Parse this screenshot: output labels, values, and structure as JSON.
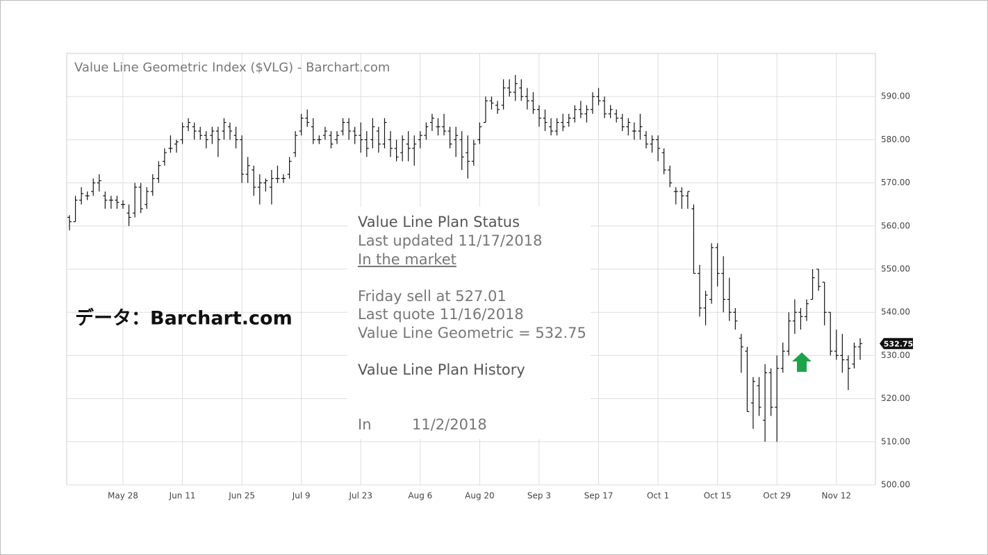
{
  "chart_data": {
    "type": "ohlc",
    "title": "Value Line Geometric Index ($VLG) - Barchart.com",
    "source_note": "データ：Barchart.com",
    "color": "#111111",
    "grid": true,
    "ylim": [
      500,
      600
    ],
    "yticks": [
      {
        "value": 500,
        "label": "500.00"
      },
      {
        "value": 510,
        "label": "510.00"
      },
      {
        "value": 520,
        "label": "520.00"
      },
      {
        "value": 530,
        "label": "530.00"
      },
      {
        "value": 540,
        "label": "540.00"
      },
      {
        "value": 550,
        "label": "550.00"
      },
      {
        "value": 560,
        "label": "560.00"
      },
      {
        "value": 570,
        "label": "570.00"
      },
      {
        "value": 580,
        "label": "580.00"
      },
      {
        "value": 590,
        "label": "590.00"
      }
    ],
    "categories": [
      null,
      null,
      null,
      null,
      null,
      null,
      null,
      null,
      null,
      "May 28",
      null,
      null,
      null,
      null,
      null,
      null,
      null,
      null,
      null,
      "Jun 11",
      null,
      null,
      null,
      null,
      null,
      null,
      null,
      null,
      null,
      "Jun 25",
      null,
      null,
      null,
      null,
      null,
      null,
      null,
      null,
      null,
      "Jul 9",
      null,
      null,
      null,
      null,
      null,
      null,
      null,
      null,
      null,
      "Jul 23",
      null,
      null,
      null,
      null,
      null,
      null,
      null,
      null,
      null,
      "Aug 6",
      null,
      null,
      null,
      null,
      null,
      null,
      null,
      null,
      null,
      "Aug 20",
      null,
      null,
      null,
      null,
      null,
      null,
      null,
      null,
      null,
      "Sep 3",
      null,
      null,
      null,
      null,
      null,
      null,
      null,
      null,
      null,
      "Sep 17",
      null,
      null,
      null,
      null,
      null,
      null,
      null,
      null,
      null,
      "Oct 1",
      null,
      null,
      null,
      null,
      null,
      null,
      null,
      null,
      null,
      "Oct 15",
      null,
      null,
      null,
      null,
      null,
      null,
      null,
      null,
      null,
      "Oct 29",
      null,
      null,
      null,
      null,
      null,
      null,
      null,
      null,
      null,
      "Nov 12",
      null,
      null,
      null,
      null
    ],
    "ohlc": [
      [
        562,
        562.5,
        559,
        561
      ],
      [
        561,
        567,
        561,
        566
      ],
      [
        566,
        569,
        565,
        567.5
      ],
      [
        567,
        568,
        566,
        567
      ],
      [
        568,
        571,
        567,
        570
      ],
      [
        570,
        572,
        568,
        570.5
      ],
      [
        567,
        568,
        564,
        566
      ],
      [
        566,
        567,
        564,
        566
      ],
      [
        566,
        567,
        564,
        565.5
      ],
      [
        565,
        566,
        564,
        565
      ],
      [
        563,
        565,
        560,
        562
      ],
      [
        563,
        570,
        562,
        569
      ],
      [
        569,
        570,
        563,
        564
      ],
      [
        565,
        569,
        564,
        568
      ],
      [
        568,
        572,
        567,
        571
      ],
      [
        571,
        575,
        570,
        574
      ],
      [
        575,
        578,
        574,
        577
      ],
      [
        578,
        581,
        577,
        578
      ],
      [
        579,
        580,
        577,
        579.5
      ],
      [
        580,
        584,
        579,
        583
      ],
      [
        583,
        585,
        582,
        584
      ],
      [
        583,
        584,
        580,
        582
      ],
      [
        582,
        583,
        580,
        581
      ],
      [
        581,
        582,
        578,
        580
      ],
      [
        581,
        583,
        579,
        582
      ],
      [
        582,
        583,
        576,
        580
      ],
      [
        582,
        585,
        580,
        584
      ],
      [
        583,
        584,
        580,
        582
      ],
      [
        581,
        583,
        578,
        580
      ],
      [
        580,
        581,
        570,
        572
      ],
      [
        572,
        576,
        570,
        574
      ],
      [
        573,
        574,
        567,
        569
      ],
      [
        569,
        572,
        565,
        570
      ],
      [
        570,
        571,
        568,
        570.5
      ],
      [
        569,
        573,
        565,
        571
      ],
      [
        571,
        574,
        570,
        571
      ],
      [
        571,
        572,
        570,
        571
      ],
      [
        572,
        576,
        571,
        575
      ],
      [
        577,
        582,
        576,
        581
      ],
      [
        582,
        586,
        581,
        585
      ],
      [
        585,
        587,
        583,
        584
      ],
      [
        583,
        585,
        579,
        580
      ],
      [
        580,
        581,
        579,
        580
      ],
      [
        581,
        583,
        580,
        582
      ],
      [
        581,
        582,
        578,
        579
      ],
      [
        580,
        582,
        579,
        581
      ],
      [
        582,
        585,
        581,
        584
      ],
      [
        584,
        585,
        580,
        582
      ],
      [
        582,
        583,
        579,
        581
      ],
      [
        581,
        584,
        577,
        580
      ],
      [
        580,
        582,
        576,
        578
      ],
      [
        580,
        585,
        578,
        583
      ],
      [
        582,
        583,
        577,
        579
      ],
      [
        579,
        585,
        578,
        584
      ],
      [
        580,
        582,
        576,
        578
      ],
      [
        578,
        580,
        575,
        576
      ],
      [
        577,
        581,
        575,
        580
      ],
      [
        579,
        582,
        575,
        578
      ],
      [
        578,
        581,
        574,
        579
      ],
      [
        580,
        582,
        578,
        581
      ],
      [
        581,
        584,
        580,
        583
      ],
      [
        584,
        586,
        582,
        585
      ],
      [
        583,
        585,
        581,
        583
      ],
      [
        583,
        586,
        581,
        582
      ],
      [
        582,
        583,
        578,
        579
      ],
      [
        580,
        583,
        576,
        581
      ],
      [
        580,
        582,
        573,
        576
      ],
      [
        577,
        581,
        571,
        575
      ],
      [
        575,
        580,
        574,
        579
      ],
      [
        580,
        584,
        579,
        583
      ],
      [
        584,
        590,
        584,
        589
      ],
      [
        589,
        590,
        587,
        588.5
      ],
      [
        588,
        589,
        586,
        587
      ],
      [
        588,
        594,
        587,
        592
      ],
      [
        592,
        594,
        590,
        591
      ],
      [
        591,
        595,
        589,
        593
      ],
      [
        592,
        594,
        589,
        590
      ],
      [
        590,
        592,
        587,
        589
      ],
      [
        589,
        591,
        586,
        587
      ],
      [
        587,
        588,
        583,
        585
      ],
      [
        585,
        587,
        582,
        584
      ],
      [
        583,
        585,
        581,
        582
      ],
      [
        582,
        585,
        581,
        584
      ],
      [
        584,
        586,
        582,
        583
      ],
      [
        584,
        586,
        583,
        585
      ],
      [
        585,
        588,
        584,
        587
      ],
      [
        587,
        589,
        585,
        586
      ],
      [
        586,
        588,
        584,
        587
      ],
      [
        587,
        591,
        586,
        590
      ],
      [
        590,
        592,
        588,
        589
      ],
      [
        589,
        590,
        585,
        586
      ],
      [
        586,
        588,
        585,
        587
      ],
      [
        586,
        587,
        584,
        585
      ],
      [
        585,
        586,
        582,
        583
      ],
      [
        583,
        585,
        581,
        584
      ],
      [
        582,
        584,
        580,
        582
      ],
      [
        582,
        586,
        580,
        583
      ],
      [
        581,
        582,
        578,
        579
      ],
      [
        579,
        581,
        577,
        580
      ],
      [
        580,
        581,
        575,
        578
      ],
      [
        577,
        578,
        572,
        573
      ],
      [
        573,
        574,
        569,
        570
      ],
      [
        568,
        569,
        565,
        568
      ],
      [
        568,
        569,
        564,
        567
      ],
      [
        567,
        568,
        564,
        568
      ],
      [
        564,
        565,
        549,
        549
      ],
      [
        549,
        551,
        539,
        541
      ],
      [
        541,
        545,
        537,
        544
      ],
      [
        543,
        556,
        542,
        555
      ],
      [
        555,
        556,
        546,
        549
      ],
      [
        549,
        553,
        540,
        543
      ],
      [
        543,
        548,
        538,
        540
      ],
      [
        540,
        541,
        536,
        538
      ],
      [
        534,
        535,
        526,
        532
      ],
      [
        531,
        532,
        517,
        517
      ],
      [
        519,
        525,
        513,
        524
      ],
      [
        523,
        525,
        516,
        518
      ],
      [
        515,
        528,
        510,
        526
      ],
      [
        526,
        527,
        516,
        518
      ],
      [
        518,
        530,
        510,
        527
      ],
      [
        527,
        533,
        526,
        531
      ],
      [
        531,
        540,
        530,
        538
      ],
      [
        538,
        543,
        535,
        540
      ],
      [
        540,
        541,
        536,
        539
      ],
      [
        539,
        543,
        538,
        542
      ],
      [
        543,
        550,
        543,
        548
      ],
      [
        550,
        550,
        545,
        546
      ],
      [
        547,
        547,
        537,
        540
      ],
      [
        540,
        540,
        530,
        531
      ],
      [
        531,
        536,
        529,
        530
      ],
      [
        530,
        535,
        526,
        529
      ],
      [
        529,
        530,
        522,
        527
      ],
      [
        528,
        533,
        527,
        532
      ],
      [
        532,
        534,
        529,
        532.75
      ]
    ],
    "panel": {
      "title": "Value Line Plan Status",
      "updated": "Last updated 11/17/2018",
      "status": "In the market",
      "sell": "Friday sell at 527.01",
      "quote": "Last quote 11/16/2018",
      "index": "Value Line Geometric = 532.75",
      "history_title": "Value Line Plan History",
      "history": [
        {
          "action": "In",
          "date": "11/2/2018"
        }
      ]
    }
  }
}
